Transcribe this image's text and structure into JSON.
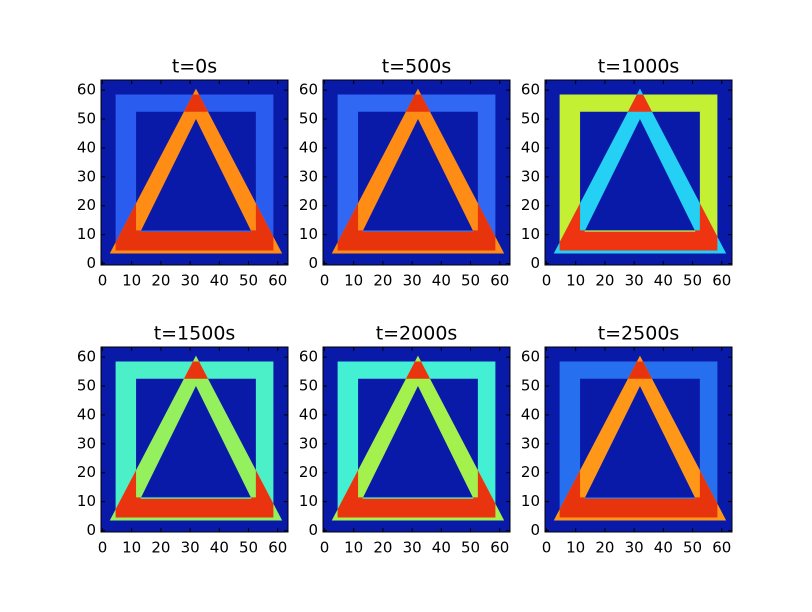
{
  "chart_data": [
    {
      "type": "heatmap",
      "title": "t=0s",
      "xlim": [
        -0.5,
        63.5
      ],
      "ylim": [
        -0.5,
        63.5
      ],
      "xticks": [
        0,
        10,
        20,
        30,
        40,
        50,
        60
      ],
      "yticks": [
        0,
        10,
        20,
        30,
        40,
        50,
        60
      ],
      "background_color": "#0a1aa8",
      "square_color": "#2a5cf0",
      "triangle_color": "#ff8c14",
      "overlap_color": "#e8340c"
    },
    {
      "type": "heatmap",
      "title": "t=500s",
      "xlim": [
        -0.5,
        63.5
      ],
      "ylim": [
        -0.5,
        63.5
      ],
      "xticks": [
        0,
        10,
        20,
        30,
        40,
        50,
        60
      ],
      "yticks": [
        0,
        10,
        20,
        30,
        40,
        50,
        60
      ],
      "background_color": "#0a1aa8",
      "square_color": "#3068f4",
      "triangle_color": "#ff8c14",
      "overlap_color": "#e8340c"
    },
    {
      "type": "heatmap",
      "title": "t=1000s",
      "xlim": [
        -0.5,
        63.5
      ],
      "ylim": [
        -0.5,
        63.5
      ],
      "xticks": [
        0,
        10,
        20,
        30,
        40,
        50,
        60
      ],
      "yticks": [
        0,
        10,
        20,
        30,
        40,
        50,
        60
      ],
      "background_color": "#0a1aa8",
      "square_color": "#c4f034",
      "triangle_color": "#24d0f4",
      "overlap_color": "#ee3410"
    },
    {
      "type": "heatmap",
      "title": "t=1500s",
      "xlim": [
        -0.5,
        63.5
      ],
      "ylim": [
        -0.5,
        63.5
      ],
      "xticks": [
        0,
        10,
        20,
        30,
        40,
        50,
        60
      ],
      "yticks": [
        0,
        10,
        20,
        30,
        40,
        50,
        60
      ],
      "background_color": "#0a1aa8",
      "square_color": "#4cf0c8",
      "triangle_color": "#94f05c",
      "overlap_color": "#ea3410"
    },
    {
      "type": "heatmap",
      "title": "t=2000s",
      "xlim": [
        -0.5,
        63.5
      ],
      "ylim": [
        -0.5,
        63.5
      ],
      "xticks": [
        0,
        10,
        20,
        30,
        40,
        50,
        60
      ],
      "yticks": [
        0,
        10,
        20,
        30,
        40,
        50,
        60
      ],
      "background_color": "#0a1aa8",
      "square_color": "#44f0d4",
      "triangle_color": "#a4f04c",
      "overlap_color": "#ea3410"
    },
    {
      "type": "heatmap",
      "title": "t=2500s",
      "xlim": [
        -0.5,
        63.5
      ],
      "ylim": [
        -0.5,
        63.5
      ],
      "xticks": [
        0,
        10,
        20,
        30,
        40,
        50,
        60
      ],
      "yticks": [
        0,
        10,
        20,
        30,
        40,
        50,
        60
      ],
      "background_color": "#0a1aa8",
      "square_color": "#2670f0",
      "triangle_color": "#ff9818",
      "overlap_color": "#e8340c"
    }
  ]
}
